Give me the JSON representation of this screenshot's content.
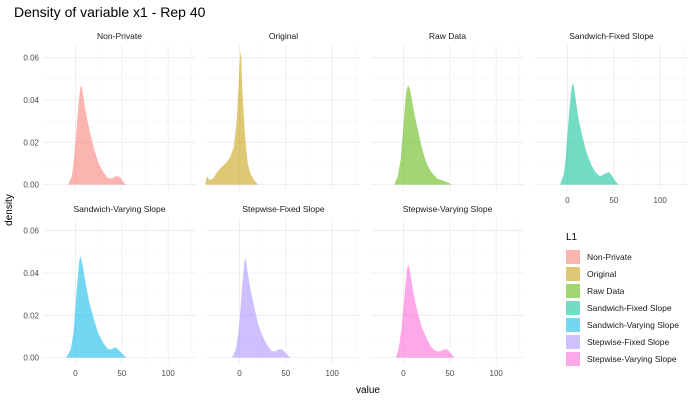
{
  "chart_data": {
    "type": "area",
    "title": "Density of variable x1 - Rep 40",
    "xlabel": "value",
    "ylabel": "density",
    "xlim": [
      -35,
      130
    ],
    "ylim": [
      -0.003,
      0.066
    ],
    "xticks": [
      0,
      50,
      100
    ],
    "yticks": [
      0.0,
      0.02,
      0.04,
      0.06
    ],
    "ytick_labels": [
      "0.00",
      "0.02",
      "0.04",
      "0.06"
    ],
    "grid": true,
    "legend": {
      "title": "L1",
      "position": "right"
    },
    "series": [
      {
        "name": "Non-Private",
        "color": "#F8766D",
        "points": [
          [
            -8,
            0.0
          ],
          [
            -4,
            0.004
          ],
          [
            -2,
            0.01
          ],
          [
            0,
            0.02
          ],
          [
            2,
            0.031
          ],
          [
            4,
            0.041
          ],
          [
            5,
            0.045
          ],
          [
            6,
            0.047
          ],
          [
            7,
            0.046
          ],
          [
            8,
            0.043
          ],
          [
            10,
            0.037
          ],
          [
            13,
            0.03
          ],
          [
            16,
            0.024
          ],
          [
            20,
            0.017
          ],
          [
            25,
            0.01
          ],
          [
            30,
            0.006
          ],
          [
            35,
            0.003
          ],
          [
            40,
            0.003
          ],
          [
            43,
            0.004
          ],
          [
            46,
            0.004
          ],
          [
            49,
            0.003
          ],
          [
            52,
            0.001
          ],
          [
            55,
            0.0
          ]
        ]
      },
      {
        "name": "Original",
        "color": "#C49A00",
        "points": [
          [
            -37,
            0.0
          ],
          [
            -35,
            0.004
          ],
          [
            -32,
            0.002
          ],
          [
            -28,
            0.003
          ],
          [
            -24,
            0.006
          ],
          [
            -20,
            0.008
          ],
          [
            -15,
            0.01
          ],
          [
            -10,
            0.013
          ],
          [
            -6,
            0.018
          ],
          [
            -3,
            0.03
          ],
          [
            -1,
            0.046
          ],
          [
            0,
            0.056
          ],
          [
            1,
            0.063
          ],
          [
            2,
            0.06
          ],
          [
            3,
            0.045
          ],
          [
            5,
            0.03
          ],
          [
            7,
            0.018
          ],
          [
            9,
            0.01
          ],
          [
            12,
            0.005
          ],
          [
            16,
            0.002
          ],
          [
            20,
            0.0
          ]
        ]
      },
      {
        "name": "Raw Data",
        "color": "#53B400",
        "points": [
          [
            -10,
            0.0
          ],
          [
            -6,
            0.004
          ],
          [
            -3,
            0.012
          ],
          [
            -1,
            0.022
          ],
          [
            1,
            0.034
          ],
          [
            3,
            0.044
          ],
          [
            5,
            0.047
          ],
          [
            7,
            0.045
          ],
          [
            9,
            0.04
          ],
          [
            12,
            0.033
          ],
          [
            16,
            0.025
          ],
          [
            20,
            0.017
          ],
          [
            25,
            0.01
          ],
          [
            30,
            0.006
          ],
          [
            36,
            0.003
          ],
          [
            42,
            0.002
          ],
          [
            48,
            0.001
          ],
          [
            52,
            0.0
          ]
        ]
      },
      {
        "name": "Sandwich-Fixed Slope",
        "color": "#00C094",
        "points": [
          [
            -8,
            0.0
          ],
          [
            -4,
            0.005
          ],
          [
            -2,
            0.012
          ],
          [
            0,
            0.024
          ],
          [
            2,
            0.035
          ],
          [
            4,
            0.044
          ],
          [
            5,
            0.047
          ],
          [
            6,
            0.048
          ],
          [
            7,
            0.046
          ],
          [
            9,
            0.04
          ],
          [
            12,
            0.031
          ],
          [
            16,
            0.023
          ],
          [
            20,
            0.016
          ],
          [
            25,
            0.01
          ],
          [
            30,
            0.006
          ],
          [
            35,
            0.004
          ],
          [
            40,
            0.005
          ],
          [
            44,
            0.006
          ],
          [
            47,
            0.005
          ],
          [
            51,
            0.002
          ],
          [
            55,
            0.0
          ]
        ]
      },
      {
        "name": "Sandwich-Varying Slope",
        "color": "#00B6EB",
        "points": [
          [
            -10,
            0.0
          ],
          [
            -5,
            0.004
          ],
          [
            -2,
            0.012
          ],
          [
            0,
            0.024
          ],
          [
            2,
            0.036
          ],
          [
            4,
            0.045
          ],
          [
            5,
            0.048
          ],
          [
            6,
            0.047
          ],
          [
            8,
            0.043
          ],
          [
            11,
            0.035
          ],
          [
            15,
            0.026
          ],
          [
            20,
            0.018
          ],
          [
            25,
            0.011
          ],
          [
            30,
            0.007
          ],
          [
            35,
            0.004
          ],
          [
            39,
            0.004
          ],
          [
            43,
            0.005
          ],
          [
            46,
            0.004
          ],
          [
            50,
            0.002
          ],
          [
            55,
            0.0
          ]
        ]
      },
      {
        "name": "Stepwise-Fixed Slope",
        "color": "#A58AFF",
        "points": [
          [
            -8,
            0.0
          ],
          [
            -4,
            0.004
          ],
          [
            -1,
            0.012
          ],
          [
            1,
            0.022
          ],
          [
            3,
            0.034
          ],
          [
            5,
            0.044
          ],
          [
            6,
            0.047
          ],
          [
            7,
            0.046
          ],
          [
            9,
            0.04
          ],
          [
            12,
            0.032
          ],
          [
            16,
            0.024
          ],
          [
            20,
            0.016
          ],
          [
            25,
            0.01
          ],
          [
            30,
            0.006
          ],
          [
            35,
            0.003
          ],
          [
            39,
            0.003
          ],
          [
            43,
            0.004
          ],
          [
            46,
            0.004
          ],
          [
            50,
            0.002
          ],
          [
            55,
            0.0
          ]
        ]
      },
      {
        "name": "Stepwise-Varying Slope",
        "color": "#FB61D7",
        "points": [
          [
            -8,
            0.0
          ],
          [
            -5,
            0.005
          ],
          [
            -2,
            0.014
          ],
          [
            0,
            0.024
          ],
          [
            2,
            0.034
          ],
          [
            4,
            0.042
          ],
          [
            5,
            0.044
          ],
          [
            6,
            0.043
          ],
          [
            8,
            0.038
          ],
          [
            11,
            0.03
          ],
          [
            15,
            0.022
          ],
          [
            20,
            0.014
          ],
          [
            25,
            0.009
          ],
          [
            30,
            0.005
          ],
          [
            35,
            0.003
          ],
          [
            40,
            0.003
          ],
          [
            44,
            0.004
          ],
          [
            47,
            0.004
          ],
          [
            51,
            0.002
          ],
          [
            55,
            0.0
          ]
        ]
      }
    ]
  }
}
